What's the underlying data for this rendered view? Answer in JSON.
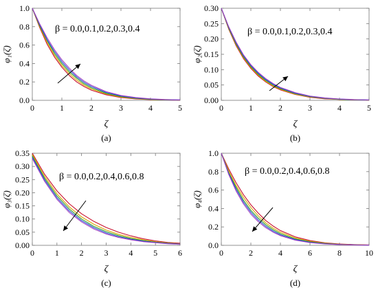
{
  "colors": [
    "#c8102e",
    "#d9a400",
    "#2e9e2e",
    "#2b4bd8",
    "#a040c0"
  ],
  "chart_data": [
    {
      "type": "line",
      "panel_label": "(a)",
      "xlabel": "ζ",
      "ylabel": "φ₁(ζ)",
      "annotation": "β = 0.0,0.1,0.2,0.3,0.4",
      "arrow": "up-right",
      "xlim": [
        0,
        5
      ],
      "ylim": [
        0,
        1.0
      ],
      "xticks": [
        0,
        1,
        2,
        3,
        4,
        5
      ],
      "yticks": [
        0.0,
        0.2,
        0.4,
        0.6,
        0.8,
        1.0
      ],
      "ytick_labels": [
        "0.0",
        "0.2",
        "0.4",
        "0.6",
        "0.8",
        "1.0"
      ],
      "x": [
        0,
        0.25,
        0.5,
        0.75,
        1.0,
        1.25,
        1.5,
        1.75,
        2.0,
        2.5,
        3.0,
        3.5,
        4.0,
        4.5,
        5.0
      ],
      "series": [
        {
          "values": [
            1.0,
            0.79,
            0.61,
            0.47,
            0.36,
            0.27,
            0.2,
            0.15,
            0.11,
            0.06,
            0.03,
            0.015,
            0.008,
            0.004,
            0.002
          ]
        },
        {
          "values": [
            1.0,
            0.8,
            0.63,
            0.49,
            0.38,
            0.29,
            0.22,
            0.165,
            0.123,
            0.068,
            0.036,
            0.019,
            0.01,
            0.005,
            0.003
          ]
        },
        {
          "values": [
            1.0,
            0.81,
            0.65,
            0.51,
            0.4,
            0.31,
            0.24,
            0.18,
            0.136,
            0.076,
            0.041,
            0.022,
            0.012,
            0.006,
            0.003
          ]
        },
        {
          "values": [
            1.0,
            0.82,
            0.66,
            0.53,
            0.42,
            0.33,
            0.255,
            0.195,
            0.15,
            0.085,
            0.047,
            0.026,
            0.014,
            0.007,
            0.004
          ]
        },
        {
          "values": [
            1.0,
            0.83,
            0.68,
            0.55,
            0.44,
            0.35,
            0.27,
            0.21,
            0.163,
            0.094,
            0.053,
            0.03,
            0.016,
            0.009,
            0.005
          ]
        }
      ]
    },
    {
      "type": "line",
      "panel_label": "(b)",
      "xlabel": "ζ",
      "ylabel": "φ₂(ζ)",
      "annotation": "β = 0.0,0.1,0.2,0.3,0.4",
      "arrow": "up-right",
      "xlim": [
        0,
        5
      ],
      "ylim": [
        0,
        0.3
      ],
      "xticks": [
        0,
        1,
        2,
        3,
        4,
        5
      ],
      "yticks": [
        0.0,
        0.05,
        0.1,
        0.15,
        0.2,
        0.25,
        0.3
      ],
      "ytick_labels": [
        "0.00",
        "0.05",
        "0.10",
        "0.15",
        "0.20",
        "0.25",
        "0.30"
      ],
      "x": [
        0,
        0.25,
        0.5,
        0.75,
        1.0,
        1.25,
        1.5,
        1.75,
        2.0,
        2.5,
        3.0,
        3.5,
        4.0,
        4.5,
        5.0
      ],
      "series": [
        {
          "values": [
            0.3,
            0.232,
            0.178,
            0.136,
            0.104,
            0.079,
            0.06,
            0.045,
            0.034,
            0.019,
            0.01,
            0.005,
            0.003,
            0.0015,
            0.001
          ]
        },
        {
          "values": [
            0.3,
            0.234,
            0.181,
            0.139,
            0.107,
            0.082,
            0.062,
            0.047,
            0.036,
            0.02,
            0.011,
            0.006,
            0.003,
            0.0017,
            0.001
          ]
        },
        {
          "values": [
            0.3,
            0.236,
            0.184,
            0.142,
            0.11,
            0.085,
            0.065,
            0.05,
            0.038,
            0.022,
            0.012,
            0.0065,
            0.0035,
            0.002,
            0.001
          ]
        },
        {
          "values": [
            0.3,
            0.238,
            0.187,
            0.145,
            0.113,
            0.088,
            0.068,
            0.052,
            0.04,
            0.023,
            0.013,
            0.007,
            0.004,
            0.002,
            0.0012
          ]
        },
        {
          "values": [
            0.3,
            0.24,
            0.19,
            0.148,
            0.116,
            0.091,
            0.071,
            0.055,
            0.042,
            0.025,
            0.014,
            0.008,
            0.0045,
            0.0025,
            0.0014
          ]
        }
      ]
    },
    {
      "type": "line",
      "panel_label": "(c)",
      "xlabel": "ζ",
      "ylabel": "φ₃(ζ)",
      "annotation": "β = 0.0,0.2,0.4,0.6,0.8",
      "arrow": "down-left",
      "xlim": [
        0,
        6
      ],
      "ylim": [
        0,
        0.35
      ],
      "xticks": [
        0,
        1,
        2,
        3,
        4,
        5,
        6
      ],
      "yticks": [
        0.0,
        0.05,
        0.1,
        0.15,
        0.2,
        0.25,
        0.3,
        0.35
      ],
      "ytick_labels": [
        "0.00",
        "0.05",
        "0.10",
        "0.15",
        "0.20",
        "0.25",
        "0.30",
        "0.35"
      ],
      "x": [
        0,
        0.5,
        1.0,
        1.5,
        2.0,
        2.5,
        3.0,
        3.5,
        4.0,
        4.5,
        5.0,
        5.5,
        6.0
      ],
      "series": [
        {
          "values": [
            0.35,
            0.27,
            0.207,
            0.158,
            0.12,
            0.091,
            0.068,
            0.05,
            0.036,
            0.025,
            0.017,
            0.011,
            0.008
          ]
        },
        {
          "values": [
            0.345,
            0.262,
            0.196,
            0.146,
            0.108,
            0.08,
            0.058,
            0.042,
            0.03,
            0.021,
            0.014,
            0.009,
            0.006
          ]
        },
        {
          "values": [
            0.34,
            0.255,
            0.188,
            0.138,
            0.1,
            0.072,
            0.052,
            0.037,
            0.026,
            0.018,
            0.012,
            0.008,
            0.005
          ]
        },
        {
          "values": [
            0.335,
            0.249,
            0.181,
            0.131,
            0.094,
            0.067,
            0.047,
            0.033,
            0.023,
            0.016,
            0.011,
            0.007,
            0.005
          ]
        },
        {
          "values": [
            0.33,
            0.243,
            0.175,
            0.125,
            0.089,
            0.062,
            0.043,
            0.03,
            0.021,
            0.014,
            0.01,
            0.006,
            0.004
          ]
        }
      ]
    },
    {
      "type": "line",
      "panel_label": "(d)",
      "xlabel": "ζ",
      "ylabel": "φ₄(ζ)",
      "annotation": "β = 0.0,0.2,0.4,0.6,0.8",
      "arrow": "down-left",
      "xlim": [
        0,
        10
      ],
      "ylim": [
        0,
        1.0
      ],
      "xticks": [
        0,
        2,
        4,
        6,
        8,
        10
      ],
      "yticks": [
        0.0,
        0.2,
        0.4,
        0.6,
        0.8,
        1.0
      ],
      "ytick_labels": [
        "0.0",
        "0.2",
        "0.4",
        "0.6",
        "0.8",
        "1.0"
      ],
      "x": [
        0,
        0.5,
        1.0,
        1.5,
        2.0,
        2.5,
        3.0,
        3.5,
        4.0,
        5.0,
        6.0,
        7.0,
        8.0,
        9.0,
        10.0
      ],
      "series": [
        {
          "values": [
            1.0,
            0.83,
            0.68,
            0.55,
            0.44,
            0.35,
            0.27,
            0.21,
            0.16,
            0.092,
            0.052,
            0.028,
            0.015,
            0.008,
            0.004
          ]
        },
        {
          "values": [
            1.0,
            0.81,
            0.65,
            0.52,
            0.41,
            0.32,
            0.245,
            0.187,
            0.142,
            0.08,
            0.044,
            0.024,
            0.012,
            0.006,
            0.003
          ]
        },
        {
          "values": [
            1.0,
            0.79,
            0.63,
            0.49,
            0.38,
            0.295,
            0.225,
            0.17,
            0.127,
            0.07,
            0.038,
            0.02,
            0.01,
            0.005,
            0.003
          ]
        },
        {
          "values": [
            1.0,
            0.78,
            0.61,
            0.47,
            0.36,
            0.275,
            0.208,
            0.155,
            0.115,
            0.062,
            0.033,
            0.017,
            0.009,
            0.004,
            0.002
          ]
        },
        {
          "values": [
            1.0,
            0.77,
            0.59,
            0.45,
            0.34,
            0.257,
            0.193,
            0.143,
            0.105,
            0.056,
            0.029,
            0.015,
            0.008,
            0.004,
            0.002
          ]
        }
      ]
    }
  ]
}
